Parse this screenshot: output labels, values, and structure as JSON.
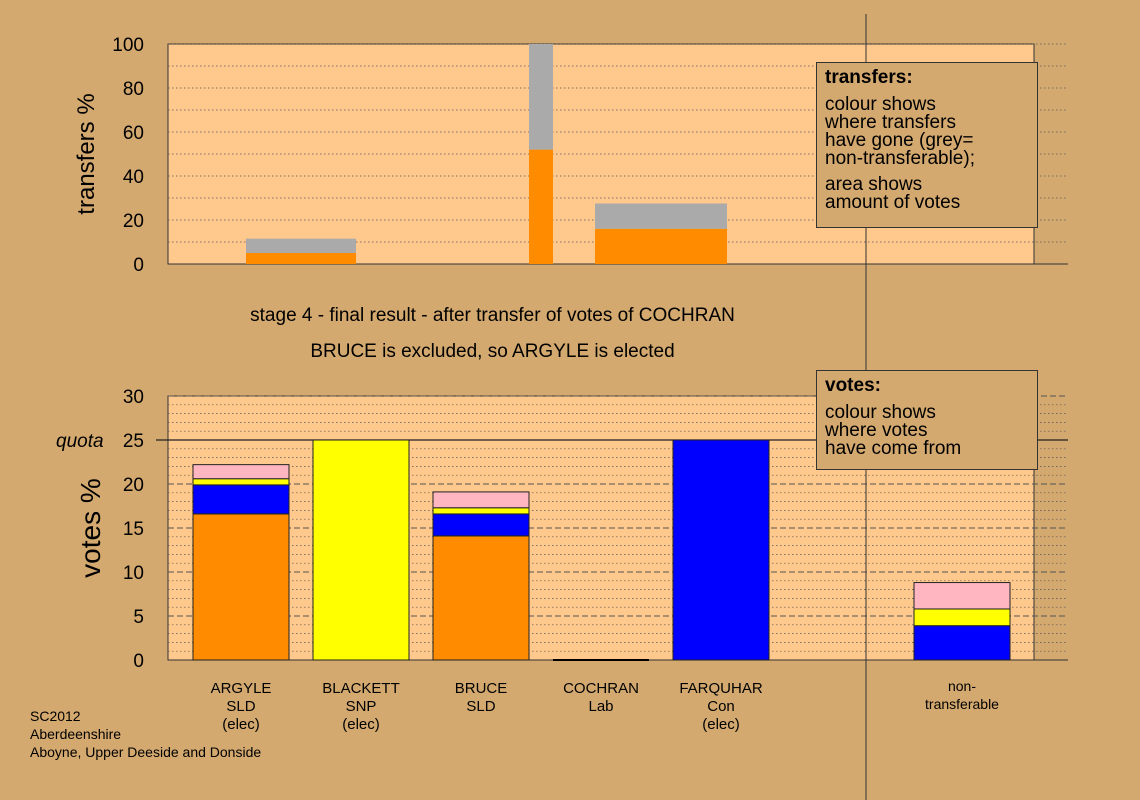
{
  "caption": {
    "line1": "stage 4 - final result - after transfer of votes of COCHRAN",
    "line2": "BRUCE is excluded, so ARGYLE is elected"
  },
  "footer": {
    "code": "SC2012",
    "council": "Aberdeenshire",
    "ward": "Aboyne, Upper Deeside and Donside"
  },
  "legends": {
    "transfers": {
      "title": "transfers:",
      "lines1": [
        "colour shows",
        "where transfers",
        "have gone (grey=",
        "non-transferable);"
      ],
      "lines2": [
        "area shows",
        "amount of votes"
      ]
    },
    "votes": {
      "title": "votes:",
      "lines1": [
        "colour shows",
        "where votes",
        "have come from"
      ]
    }
  },
  "colors": {
    "background": "#d4a96f",
    "plot_area": "#ffc88c",
    "SLD": "#ff8c00",
    "SNP": "#ffff00",
    "Con": "#0000ff",
    "Lab": "#ffb6c1",
    "non-transferable": "#aaaaaa"
  },
  "chart_data": [
    {
      "type": "bar",
      "stacked": true,
      "ylabel": "transfers %",
      "ylim": [
        0,
        100
      ],
      "yticks": [
        0,
        20,
        40,
        60,
        80,
        100
      ],
      "grid": true,
      "bars": [
        {
          "position": "ARGYLE-BLACKETT",
          "width": "wide",
          "segments": [
            {
              "color": "SLD",
              "value": 5
            },
            {
              "color": "non-transferable",
              "value": 6.5
            }
          ]
        },
        {
          "position": "BRUCE-COCHRAN",
          "width": "narrow",
          "segments": [
            {
              "color": "SLD",
              "value": 52
            },
            {
              "color": "non-transferable",
              "value": 48
            }
          ]
        },
        {
          "position": "COCHRAN-FARQUHAR",
          "width": "wide",
          "segments": [
            {
              "color": "SLD",
              "value": 16
            },
            {
              "color": "non-transferable",
              "value": 11.5
            }
          ]
        }
      ]
    },
    {
      "type": "bar",
      "stacked": true,
      "ylabel": "votes %",
      "ylim": [
        0,
        30
      ],
      "yticks": [
        0,
        5,
        10,
        15,
        20,
        25,
        30
      ],
      "quota": {
        "label": "quota",
        "value": 25
      },
      "grid": true,
      "categories": [
        {
          "name": "ARGYLE",
          "party": "SLD",
          "status": "(elec)"
        },
        {
          "name": "BLACKETT",
          "party": "SNP",
          "status": "(elec)"
        },
        {
          "name": "BRUCE",
          "party": "SLD",
          "status": ""
        },
        {
          "name": "COCHRAN",
          "party": "Lab",
          "status": ""
        },
        {
          "name": "FARQUHAR",
          "party": "Con",
          "status": "(elec)"
        },
        {
          "name": "non-",
          "party": "transferable",
          "status": ""
        }
      ],
      "stacks": [
        [
          {
            "color": "SLD",
            "value": 16.6
          },
          {
            "color": "Con",
            "value": 3.3
          },
          {
            "color": "SNP",
            "value": 0.7
          },
          {
            "color": "Lab",
            "value": 1.6
          }
        ],
        [
          {
            "color": "SNP",
            "value": 25
          }
        ],
        [
          {
            "color": "SLD",
            "value": 14.1
          },
          {
            "color": "Con",
            "value": 2.5
          },
          {
            "color": "SNP",
            "value": 0.7
          },
          {
            "color": "Lab",
            "value": 1.8
          }
        ],
        [],
        [
          {
            "color": "Con",
            "value": 25
          }
        ],
        [
          {
            "color": "Con",
            "value": 3.9
          },
          {
            "color": "SNP",
            "value": 1.9
          },
          {
            "color": "Lab",
            "value": 3.0
          }
        ]
      ]
    }
  ]
}
